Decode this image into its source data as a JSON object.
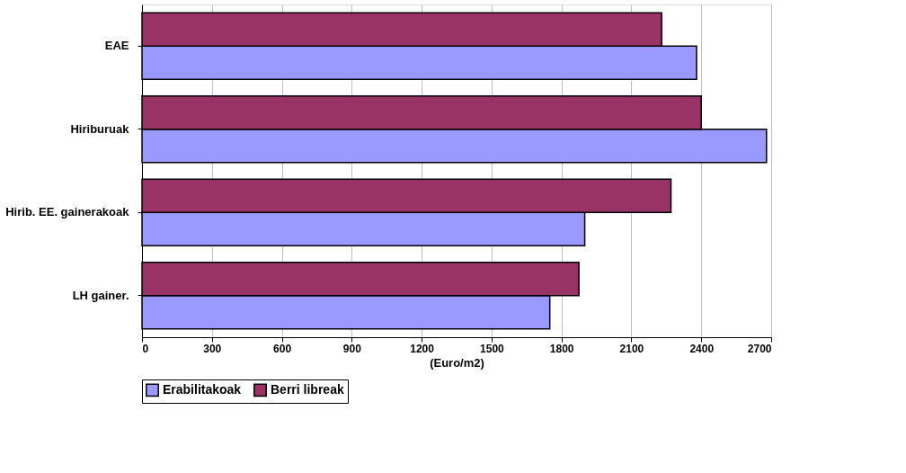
{
  "chart_data": {
    "type": "bar",
    "orientation": "horizontal",
    "xlabel": "(Euro/m2)",
    "categories": [
      "EAE",
      "Hiriburuak",
      "Hirib. EE. gainerakoak",
      "LH gainer."
    ],
    "series": [
      {
        "name": "Erabilitakoak",
        "color": "#9999ff",
        "values": [
          2380,
          2680,
          1900,
          1750
        ]
      },
      {
        "name": "Berri libreak",
        "color": "#993366",
        "values": [
          2230,
          2400,
          2270,
          1875
        ]
      }
    ],
    "xlim": [
      0,
      2700
    ],
    "xticks": [
      0,
      300,
      600,
      900,
      1200,
      1500,
      1800,
      2100,
      2400,
      2700
    ],
    "grid": "x",
    "legend": "bottom"
  }
}
